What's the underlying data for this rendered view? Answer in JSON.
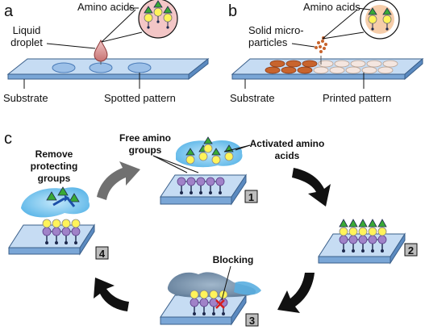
{
  "panels": {
    "a": {
      "letter": "a",
      "amino_acids": "Amino acids",
      "liquid_droplet_1": "Liquid",
      "liquid_droplet_2": "droplet",
      "substrate": "Substrate",
      "spotted_pattern": "Spotted pattern"
    },
    "b": {
      "letter": "b",
      "amino_acids": "Amino acids",
      "solid_1": "Solid micro-",
      "solid_2": "particles",
      "substrate": "Substrate",
      "printed_pattern": "Printed pattern"
    },
    "c": {
      "letter": "c",
      "remove_1": "Remove",
      "remove_2": "protecting",
      "remove_3": "groups",
      "free_1": "Free amino",
      "free_2": "groups",
      "activated_1": "Activated amino",
      "activated_2": "acids",
      "blocking": "Blocking",
      "step1": "1",
      "step2": "2",
      "step3": "3",
      "step4": "4"
    }
  },
  "colors": {
    "slide_top": "#c6dcf3",
    "slide_side": "#7aa6d6",
    "slide_stroke": "#3a5f8a",
    "spot_blue": "#9cc0e8",
    "spot_orange": "#c8642d",
    "droplet": "#e2a6a6",
    "pink_circle": "#f3c6c6",
    "peach_circle": "#f6cda9",
    "yellow": "#fff35a",
    "green": "#39a935",
    "purple": "#a082c8",
    "navy": "#1e2a4e",
    "cloud_light": "#8ecdf0",
    "cloud_dark": "#6f8aa6",
    "arrow": "#111111",
    "gray_arrow": "#707070",
    "red_x": "#d61e1e"
  }
}
